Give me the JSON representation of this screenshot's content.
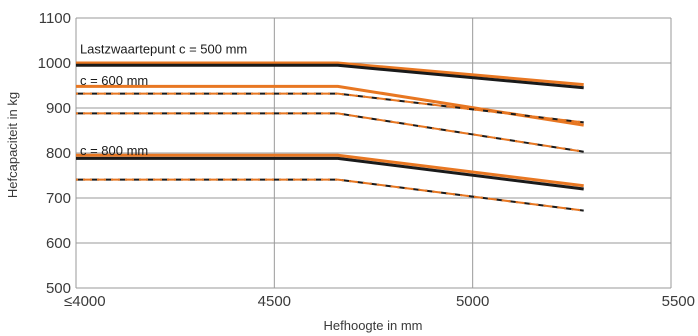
{
  "chart_data": {
    "type": "line",
    "xlabel": "Hefhoogte in mm",
    "ylabel": "Hefcapaciteit in kg",
    "xlim": [
      4000,
      5500
    ],
    "ylim": [
      500,
      1100
    ],
    "xticks": [
      {
        "value": 4000,
        "label": "≤4000"
      },
      {
        "value": 4500,
        "label": "4500"
      },
      {
        "value": 5000,
        "label": "5000"
      },
      {
        "value": 5500,
        "label": "5500"
      }
    ],
    "yticks": [
      500,
      600,
      700,
      800,
      900,
      1000,
      1100
    ],
    "grid": true,
    "colors": {
      "orange": "#E87722",
      "black": "#1a1a1a",
      "grid": "#9a9a9a"
    },
    "annotations": [
      {
        "text": "Lastzwaartepunt c = 500 mm",
        "x": 4010,
        "y": 1030
      },
      {
        "text": "c = 600 mm",
        "x": 4010,
        "y": 960
      },
      {
        "text": "c = 800 mm",
        "x": 4010,
        "y": 804
      }
    ],
    "series": [
      {
        "color": "#E87722",
        "style": "solid",
        "x": [
          4000,
          4660,
          5280
        ],
        "y": [
          1000,
          1000,
          952
        ]
      },
      {
        "color": "#1a1a1a",
        "style": "solid",
        "x": [
          4000,
          4660,
          5280
        ],
        "y": [
          995,
          995,
          945
        ]
      },
      {
        "color": "#E87722",
        "style": "solid",
        "x": [
          4000,
          4660,
          5280
        ],
        "y": [
          948,
          948,
          862
        ]
      },
      {
        "color": "#E87722",
        "style": "dash-combo",
        "x": [
          4000,
          4660,
          5280
        ],
        "y": [
          932,
          932,
          868
        ]
      },
      {
        "color": "#E87722",
        "style": "dash-combo",
        "x": [
          4000,
          4660,
          5280
        ],
        "y": [
          888,
          888,
          803
        ]
      },
      {
        "color": "#E87722",
        "style": "solid",
        "x": [
          4000,
          4660,
          5280
        ],
        "y": [
          795,
          795,
          727
        ]
      },
      {
        "color": "#1a1a1a",
        "style": "solid",
        "x": [
          4000,
          4660,
          5280
        ],
        "y": [
          788,
          788,
          720
        ]
      },
      {
        "color": "#E87722",
        "style": "dash-combo",
        "x": [
          4000,
          4660,
          5280
        ],
        "y": [
          741,
          741,
          672
        ]
      }
    ]
  }
}
